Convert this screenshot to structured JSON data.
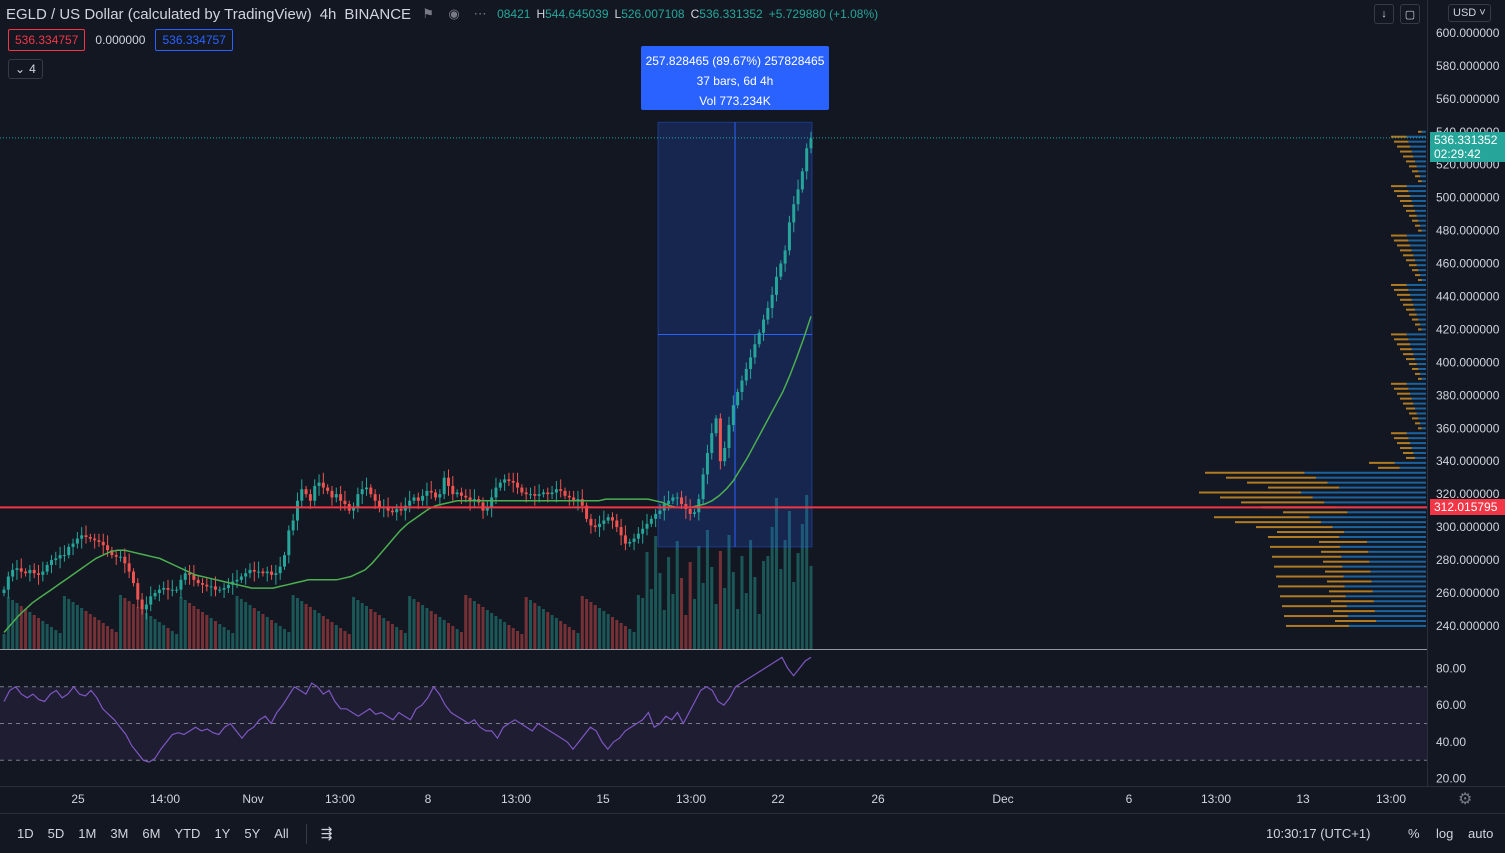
{
  "symbol": {
    "title": "EGLD / US Dollar (calculated by TradingView)",
    "interval": "4h",
    "exchange": "BINANCE",
    "ohlc": {
      "o_partial": "08421",
      "h_label": "H",
      "h": "544.645039",
      "l_label": "L",
      "l": "526.007108",
      "c_label": "C",
      "c": "536.331352",
      "change": "+5.729880 (+1.08%)"
    }
  },
  "indicator_values": {
    "v1": "536.334757",
    "v2": "0.000000",
    "v3": "536.334757",
    "collapse_count": "4"
  },
  "currency": "USD",
  "measure": {
    "line1": "257.828465 (89.67%) 257828465",
    "line2": "37 bars, 6d 4h",
    "line3": "Vol 773.234K"
  },
  "price_tags": {
    "last_price": "536.331352",
    "countdown": "02:29:42",
    "hline_price": "312.015795"
  },
  "colors": {
    "bg": "#131722",
    "up": "#26a69a",
    "down": "#ef5350",
    "ma": "#4caf50",
    "rsi": "#7e57c2",
    "hline": "#f23645",
    "measure": "#2962ff",
    "vp_up": "#2196f3",
    "vp_down": "#f5a623"
  },
  "bottom": {
    "ranges": [
      "1D",
      "5D",
      "1M",
      "3M",
      "6M",
      "YTD",
      "1Y",
      "5Y",
      "All"
    ],
    "clock": "10:30:17 (UTC+1)",
    "pct": "%",
    "log": "log",
    "auto": "auto"
  },
  "chart_data": {
    "type": "candlestick",
    "price_axis": {
      "ticks": [
        "600.000000",
        "580.000000",
        "560.000000",
        "540.000000",
        "520.000000",
        "500.000000",
        "480.000000",
        "460.000000",
        "440.000000",
        "420.000000",
        "400.000000",
        "380.000000",
        "360.000000",
        "340.000000",
        "320.000000",
        "300.000000",
        "280.000000",
        "260.000000",
        "240.000000"
      ],
      "ylim": [
        226,
        620
      ]
    },
    "rsi_axis": {
      "ticks": [
        "80.00",
        "60.00",
        "40.00",
        "20.00"
      ],
      "ylim": [
        16,
        90
      ],
      "bands": [
        70,
        50,
        30
      ]
    },
    "time_axis": {
      "labels": [
        "25",
        "14:00",
        "Nov",
        "13:00",
        "8",
        "13:00",
        "15",
        "13:00",
        "22",
        "26",
        "Dec",
        "6",
        "13:00",
        "13",
        "13:00"
      ]
    },
    "horizontal_line": 312.015795,
    "last_price": 536.331352,
    "measure_range": {
      "from": 288,
      "to": 545.8
    },
    "closes": [
      262,
      270,
      274,
      275,
      273,
      272,
      274,
      272,
      271,
      273,
      277,
      280,
      281,
      283,
      283,
      288,
      290,
      293,
      295,
      294,
      293,
      292,
      291,
      289,
      286,
      283,
      282,
      282,
      278,
      273,
      266,
      256,
      250,
      253,
      258,
      260,
      262,
      263,
      262,
      262,
      262,
      268,
      272,
      271,
      268,
      266,
      265,
      264,
      264,
      262,
      262,
      263,
      265,
      267,
      268,
      270,
      272,
      274,
      273,
      273,
      272,
      273,
      271,
      272,
      276,
      283,
      298,
      304,
      316,
      323,
      320,
      316,
      325,
      327,
      324,
      322,
      318,
      320,
      316,
      314,
      310,
      312,
      320,
      323,
      324,
      320,
      316,
      312,
      312,
      310,
      309,
      311,
      310,
      313,
      316,
      318,
      316,
      319,
      322,
      321,
      318,
      320,
      330,
      325,
      320,
      321,
      319,
      318,
      316,
      317,
      315,
      310,
      312,
      318,
      324,
      327,
      329,
      328,
      327,
      324,
      321,
      320,
      320,
      319,
      320,
      321,
      320,
      321,
      323,
      322,
      319,
      318,
      316,
      317,
      313,
      305,
      301,
      300,
      302,
      304,
      306,
      304,
      300,
      295,
      290,
      291,
      293,
      296,
      299,
      302,
      305,
      308,
      310,
      314,
      316,
      318,
      318,
      314,
      311,
      308,
      309,
      317,
      332,
      345,
      357,
      366,
      340,
      348,
      362,
      374,
      382,
      389,
      396,
      403,
      411,
      418,
      426,
      433,
      441,
      452,
      460,
      468,
      485,
      496,
      505,
      516,
      530,
      536
    ],
    "ma_series": [
      236,
      241,
      246,
      250,
      254,
      257,
      260,
      263,
      266,
      269,
      272,
      275,
      278,
      281,
      283,
      285,
      286,
      286,
      285,
      284,
      283,
      282,
      281,
      279,
      277,
      275,
      273,
      271,
      270,
      269,
      268,
      267,
      266,
      265,
      264,
      263,
      263,
      263,
      263,
      264,
      265,
      266,
      267,
      268,
      268,
      268,
      268,
      268,
      269,
      270,
      272,
      274,
      278,
      283,
      288,
      293,
      298,
      302,
      305,
      308,
      311,
      313,
      314,
      315,
      316,
      316,
      316,
      316,
      316,
      316,
      316,
      316,
      316,
      316,
      316,
      316,
      316,
      316,
      316,
      316,
      316,
      316,
      316,
      316,
      316,
      317,
      317,
      317,
      317,
      317,
      317,
      317,
      316,
      315,
      313,
      312,
      312,
      312,
      313,
      314,
      316,
      319,
      323,
      328,
      335,
      342,
      350,
      358,
      366,
      374,
      382,
      392,
      403,
      415,
      428
    ],
    "rsi_series": [
      62,
      68,
      70,
      66,
      64,
      66,
      63,
      62,
      66,
      68,
      64,
      66,
      70,
      66,
      65,
      68,
      64,
      58,
      55,
      52,
      48,
      44,
      38,
      34,
      30,
      29,
      31,
      36,
      40,
      44,
      45,
      44,
      46,
      48,
      46,
      47,
      45,
      44,
      48,
      50,
      46,
      42,
      46,
      48,
      52,
      54,
      50,
      56,
      60,
      65,
      70,
      68,
      66,
      72,
      70,
      66,
      68,
      62,
      58,
      58,
      56,
      54,
      56,
      58,
      55,
      56,
      54,
      52,
      56,
      54,
      52,
      58,
      60,
      64,
      70,
      66,
      60,
      56,
      54,
      52,
      50,
      52,
      48,
      46,
      46,
      42,
      48,
      50,
      52,
      50,
      48,
      46,
      50,
      48,
      46,
      44,
      42,
      40,
      36,
      40,
      44,
      48,
      46,
      40,
      36,
      40,
      42,
      46,
      48,
      50,
      52,
      56,
      48,
      50,
      54,
      52,
      56,
      50,
      56,
      62,
      68,
      70,
      68,
      62,
      60,
      64,
      70,
      72,
      74,
      76,
      78,
      80,
      82,
      84,
      86,
      80,
      76,
      80,
      84,
      86
    ]
  }
}
